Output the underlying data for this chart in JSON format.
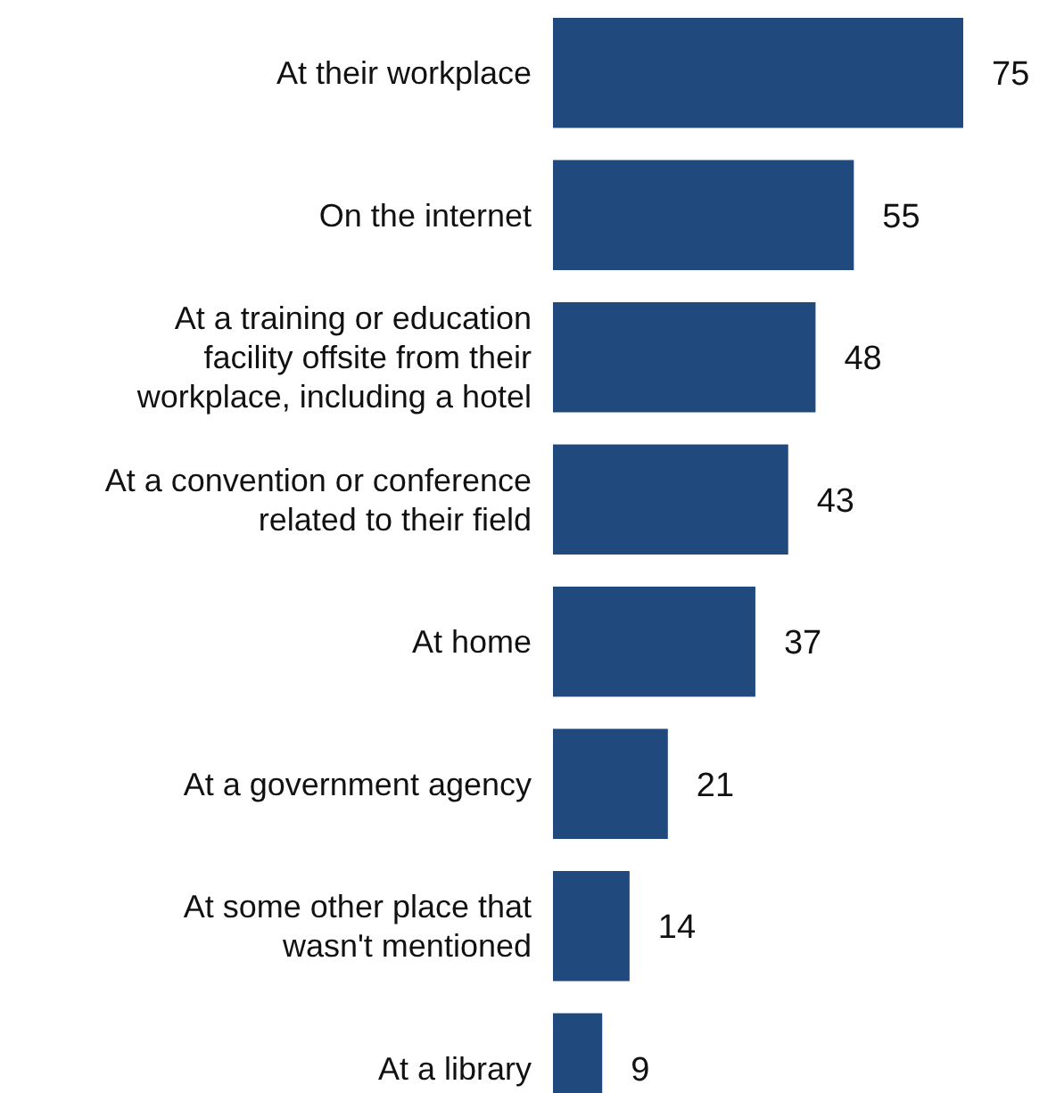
{
  "chart_data": {
    "type": "bar",
    "orientation": "horizontal",
    "categories": [
      "At their workplace",
      "On the internet",
      "At a training or education facility offsite from their workplace, including a hotel",
      "At a convention or conference related to their field",
      "At home",
      "At a government agency",
      "At some other place that wasn't mentioned",
      "At a library"
    ],
    "values": [
      75,
      55,
      48,
      43,
      37,
      21,
      14,
      9
    ],
    "color": "#204a7d",
    "data_labels": true
  }
}
